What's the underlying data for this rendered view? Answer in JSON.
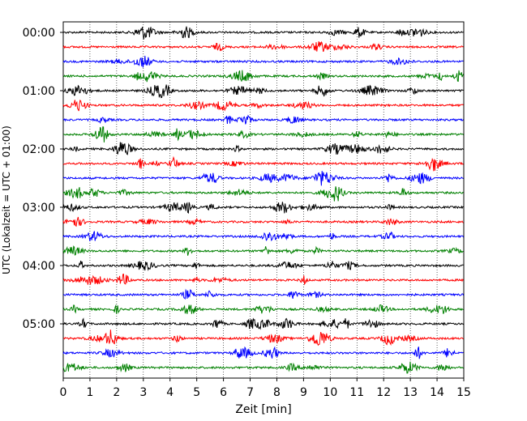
{
  "chart_data": {
    "type": "line",
    "title": "",
    "xlabel": "Zeit  [min]",
    "ylabel": "UTC (Lokalzeit = UTC + 01:00)",
    "xlim": [
      0,
      15
    ],
    "x_ticks": [
      0,
      1,
      2,
      3,
      4,
      5,
      6,
      7,
      8,
      9,
      10,
      11,
      12,
      13,
      14,
      15
    ],
    "y_tick_labels": [
      "00:00",
      "01:00",
      "02:00",
      "03:00",
      "04:00",
      "05:00"
    ],
    "grid": "vertical dotted at each minute",
    "trace_interval_minutes": 15,
    "trace_count": 24,
    "trace_colors": [
      "#000000",
      "#ff0000",
      "#0000ff",
      "#008000"
    ],
    "first_trace": "00:00",
    "last_trace": "05:45"
  }
}
